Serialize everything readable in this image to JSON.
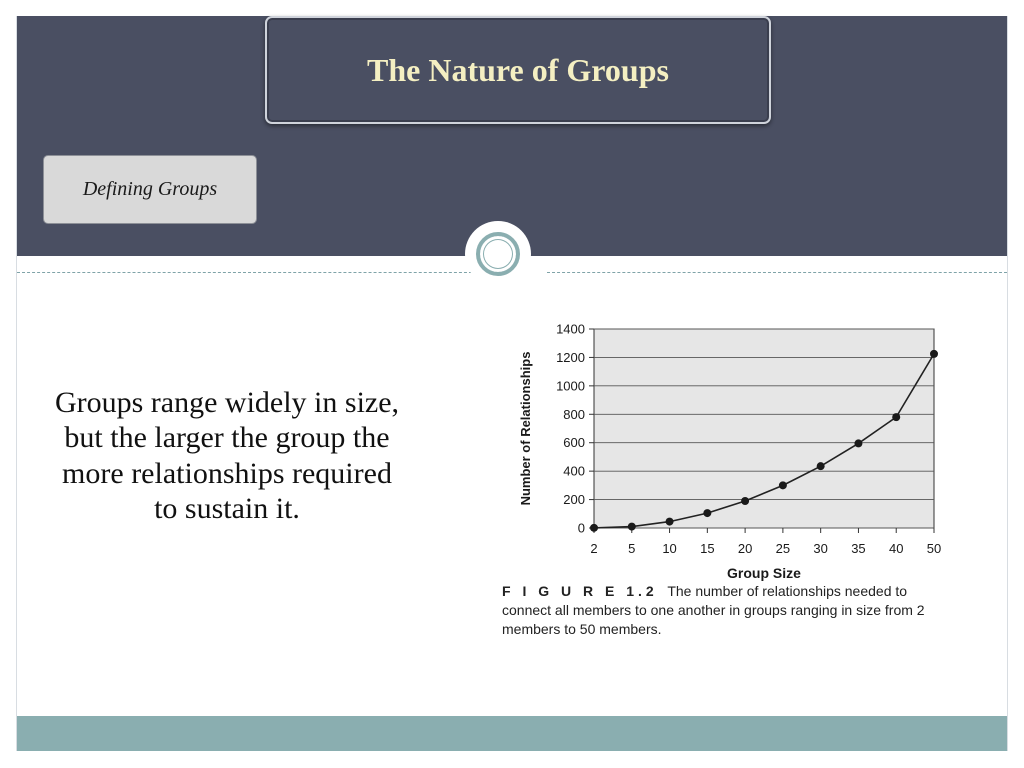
{
  "slide": {
    "title": "The Nature of Groups",
    "subtitle": "Defining Groups",
    "body_text": "Groups range widely in size, but the larger the group the more relationships required to sustain it."
  },
  "colors": {
    "header_band": "#4a4f62",
    "title_text": "#f4efc2",
    "footer_band": "#8aaeb0",
    "chart_background": "#e6e6e6"
  },
  "figure": {
    "label": "F I G U R E  1.2",
    "caption": "The number of relationships needed to connect all members to one another in groups ranging in size from 2 members to 50 members."
  },
  "chart_data": {
    "type": "line",
    "xlabel": "Group Size",
    "ylabel": "Number of Relationships",
    "categories": [
      "2",
      "5",
      "10",
      "15",
      "20",
      "25",
      "30",
      "35",
      "40",
      "50"
    ],
    "values": [
      1,
      10,
      45,
      105,
      190,
      300,
      435,
      595,
      780,
      1225
    ],
    "yticks": [
      0,
      200,
      400,
      600,
      800,
      1000,
      1200,
      1400
    ],
    "ylim": [
      0,
      1400
    ],
    "grid": "horizontal",
    "marker": "filled-circle"
  }
}
